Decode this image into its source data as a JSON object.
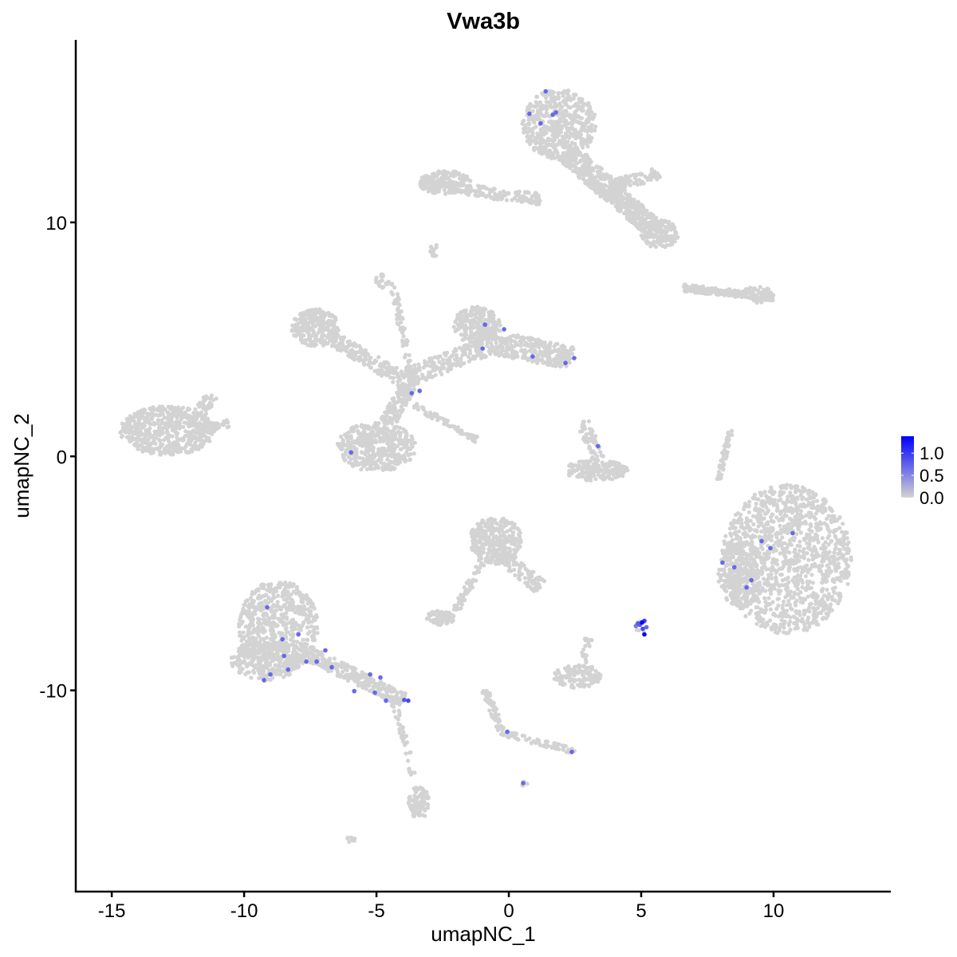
{
  "chart_data": {
    "type": "scatter",
    "title": "Vwa3b",
    "xlabel": "umapNC_1",
    "ylabel": "umapNC_2",
    "xlim": [
      -16.36,
      14.43
    ],
    "ylim": [
      -18.6,
      17.8
    ],
    "x_ticks": [
      -15,
      -10,
      -5,
      0,
      5,
      10
    ],
    "y_ticks": [
      -10,
      0,
      10
    ],
    "grid": false,
    "legend": {
      "position": "right",
      "type": "colorbar",
      "ticks": [
        "0.0",
        "0.5",
        "1.0"
      ],
      "range": [
        0,
        1.38
      ],
      "low_color": "#D3D3D3",
      "high_color": "#0000FF"
    },
    "background_clusters_note_shapes": [
      {
        "shape": "ellipse",
        "c": [
          1.9,
          14.2
        ],
        "r": [
          1.4,
          1.5
        ],
        "n": 520
      },
      {
        "shape": "line",
        "a": [
          2.2,
          13.0
        ],
        "b": [
          3.8,
          11.4
        ],
        "w": 0.9,
        "n": 260
      },
      {
        "shape": "line",
        "a": [
          3.8,
          11.4
        ],
        "b": [
          5.6,
          9.6
        ],
        "w": 0.8,
        "n": 300
      },
      {
        "shape": "ellipse",
        "c": [
          5.7,
          9.5
        ],
        "r": [
          0.7,
          0.6
        ],
        "n": 120
      },
      {
        "shape": "line",
        "a": [
          -3.2,
          11.6
        ],
        "b": [
          1.2,
          11.0
        ],
        "w": 0.5,
        "n": 160
      },
      {
        "shape": "ellipse",
        "c": [
          -2.4,
          11.7
        ],
        "r": [
          1.0,
          0.5
        ],
        "n": 160
      },
      {
        "shape": "line",
        "a": [
          4.0,
          11.6
        ],
        "b": [
          5.7,
          12.1
        ],
        "w": 0.5,
        "n": 80
      },
      {
        "shape": "ellipse",
        "c": [
          -2.8,
          8.8
        ],
        "r": [
          0.2,
          0.25
        ],
        "n": 12
      },
      {
        "shape": "ellipse",
        "c": [
          -7.3,
          5.5
        ],
        "r": [
          0.9,
          0.8
        ],
        "n": 260
      },
      {
        "shape": "line",
        "a": [
          -6.6,
          5.0
        ],
        "b": [
          -3.6,
          3.0
        ],
        "w": 0.6,
        "n": 200
      },
      {
        "shape": "ellipse",
        "c": [
          -1.2,
          5.6
        ],
        "r": [
          0.9,
          0.8
        ],
        "n": 220
      },
      {
        "shape": "line",
        "a": [
          -1.2,
          5.0
        ],
        "b": [
          2.4,
          4.2
        ],
        "w": 1.0,
        "n": 330
      },
      {
        "shape": "line",
        "a": [
          -3.8,
          3.4
        ],
        "b": [
          -1.0,
          4.6
        ],
        "w": 0.8,
        "n": 180
      },
      {
        "shape": "line",
        "a": [
          -4.4,
          7.4
        ],
        "b": [
          -3.6,
          3.0
        ],
        "w": 0.25,
        "n": 80
      },
      {
        "shape": "ellipse",
        "c": [
          -4.8,
          7.5
        ],
        "r": [
          0.3,
          0.3
        ],
        "n": 20
      },
      {
        "shape": "line",
        "a": [
          -3.6,
          2.2
        ],
        "b": [
          -1.2,
          0.7
        ],
        "w": 0.25,
        "n": 70
      },
      {
        "shape": "line",
        "a": [
          -3.8,
          3.0
        ],
        "b": [
          -4.6,
          1.4
        ],
        "w": 0.6,
        "n": 120
      },
      {
        "shape": "ellipse",
        "c": [
          -5.0,
          0.4
        ],
        "r": [
          1.5,
          1.05
        ],
        "n": 430
      },
      {
        "shape": "ellipse",
        "c": [
          -12.9,
          1.1
        ],
        "r": [
          1.8,
          1.05
        ],
        "n": 520
      },
      {
        "shape": "line",
        "a": [
          -12.0,
          1.3
        ],
        "b": [
          -11.2,
          2.6
        ],
        "w": 0.5,
        "n": 60
      },
      {
        "shape": "line",
        "a": [
          -11.5,
          1.2
        ],
        "b": [
          -10.6,
          1.4
        ],
        "w": 0.3,
        "n": 30
      },
      {
        "shape": "ellipse",
        "c": [
          3.3,
          -0.6
        ],
        "r": [
          1.2,
          0.45
        ],
        "n": 180
      },
      {
        "shape": "line",
        "a": [
          2.8,
          1.5
        ],
        "b": [
          3.4,
          -0.2
        ],
        "w": 0.5,
        "n": 60
      },
      {
        "shape": "ellipse",
        "c": [
          10.5,
          -4.4
        ],
        "r": [
          2.45,
          3.2
        ],
        "n": 1300
      },
      {
        "shape": "ellipse",
        "c": [
          8.8,
          -5.0
        ],
        "r": [
          0.9,
          1.5
        ],
        "n": 200
      },
      {
        "shape": "line",
        "a": [
          8.4,
          1.2
        ],
        "b": [
          7.9,
          -1.0
        ],
        "w": 0.2,
        "n": 50
      },
      {
        "shape": "line",
        "a": [
          6.6,
          7.2
        ],
        "b": [
          10.0,
          6.8
        ],
        "w": 0.3,
        "n": 180
      },
      {
        "shape": "ellipse",
        "c": [
          9.4,
          6.9
        ],
        "r": [
          0.6,
          0.35
        ],
        "n": 60
      },
      {
        "shape": "ellipse",
        "c": [
          -0.5,
          -3.6
        ],
        "r": [
          1.0,
          1.0
        ],
        "n": 300
      },
      {
        "shape": "line",
        "a": [
          -0.3,
          -4.2
        ],
        "b": [
          1.2,
          -5.6
        ],
        "w": 0.6,
        "n": 100
      },
      {
        "shape": "line",
        "a": [
          -1.0,
          -4.5
        ],
        "b": [
          -2.0,
          -6.6
        ],
        "w": 0.3,
        "n": 60
      },
      {
        "shape": "ellipse",
        "c": [
          -2.6,
          -6.9
        ],
        "r": [
          0.55,
          0.3
        ],
        "n": 70
      },
      {
        "shape": "ellipse",
        "c": [
          2.6,
          -9.4
        ],
        "r": [
          0.9,
          0.5
        ],
        "n": 130
      },
      {
        "shape": "line",
        "a": [
          3.0,
          -7.8
        ],
        "b": [
          2.8,
          -8.8
        ],
        "w": 0.3,
        "n": 20
      },
      {
        "shape": "ellipse",
        "c": [
          -8.7,
          -7.3
        ],
        "r": [
          1.5,
          2.0
        ],
        "n": 650
      },
      {
        "shape": "ellipse",
        "c": [
          -9.2,
          -8.7
        ],
        "r": [
          1.3,
          0.9
        ],
        "n": 250
      },
      {
        "shape": "line",
        "a": [
          -7.8,
          -8.3
        ],
        "b": [
          -4.0,
          -10.4
        ],
        "w": 0.6,
        "n": 280
      },
      {
        "shape": "line",
        "a": [
          -4.3,
          -10.6
        ],
        "b": [
          -3.6,
          -13.6
        ],
        "w": 0.25,
        "n": 40
      },
      {
        "shape": "ellipse",
        "c": [
          -3.4,
          -14.8
        ],
        "r": [
          0.4,
          0.7
        ],
        "n": 80
      },
      {
        "shape": "line",
        "a": [
          -0.9,
          -10.0
        ],
        "b": [
          -0.3,
          -11.7
        ],
        "w": 0.3,
        "n": 60
      },
      {
        "shape": "line",
        "a": [
          -0.3,
          -11.8
        ],
        "b": [
          2.5,
          -12.6
        ],
        "w": 0.25,
        "n": 70
      },
      {
        "shape": "ellipse",
        "c": [
          0.55,
          -14.0
        ],
        "r": [
          0.15,
          0.12
        ],
        "n": 8
      },
      {
        "shape": "ellipse",
        "c": [
          -6.0,
          -16.4
        ],
        "r": [
          0.25,
          0.12
        ],
        "n": 10
      },
      {
        "shape": "ellipse",
        "c": [
          5.0,
          -7.3
        ],
        "r": [
          0.2,
          0.25
        ],
        "n": 10
      }
    ],
    "expressing_cells": [
      {
        "x": 0.78,
        "y": 14.64,
        "v": 0.7
      },
      {
        "x": 1.2,
        "y": 14.23,
        "v": 0.7
      },
      {
        "x": 1.39,
        "y": 15.6,
        "v": 0.7
      },
      {
        "x": 1.66,
        "y": 14.6,
        "v": 0.7
      },
      {
        "x": 1.78,
        "y": 14.7,
        "v": 0.7
      },
      {
        "x": -0.9,
        "y": 5.63,
        "v": 0.7
      },
      {
        "x": -0.18,
        "y": 5.43,
        "v": 0.7
      },
      {
        "x": -0.99,
        "y": 4.61,
        "v": 0.7
      },
      {
        "x": 0.9,
        "y": 4.27,
        "v": 0.7
      },
      {
        "x": 2.14,
        "y": 3.99,
        "v": 0.7
      },
      {
        "x": 2.47,
        "y": 4.2,
        "v": 0.7
      },
      {
        "x": -3.67,
        "y": 2.7,
        "v": 0.7
      },
      {
        "x": -3.37,
        "y": 2.8,
        "v": 0.7
      },
      {
        "x": -5.96,
        "y": 0.17,
        "v": 0.7
      },
      {
        "x": 3.37,
        "y": 0.44,
        "v": 0.7
      },
      {
        "x": 10.72,
        "y": -3.28,
        "v": 0.7
      },
      {
        "x": 9.55,
        "y": -3.62,
        "v": 0.7
      },
      {
        "x": 9.88,
        "y": -3.92,
        "v": 0.7
      },
      {
        "x": 8.07,
        "y": -4.54,
        "v": 0.7
      },
      {
        "x": 8.52,
        "y": -4.74,
        "v": 0.7
      },
      {
        "x": 9.16,
        "y": -5.29,
        "v": 0.7
      },
      {
        "x": 8.98,
        "y": -5.6,
        "v": 0.7
      },
      {
        "x": -9.13,
        "y": -6.45,
        "v": 0.7
      },
      {
        "x": -8.55,
        "y": -7.82,
        "v": 0.7
      },
      {
        "x": -7.95,
        "y": -7.61,
        "v": 0.7
      },
      {
        "x": -8.49,
        "y": -8.53,
        "v": 0.7
      },
      {
        "x": -7.65,
        "y": -8.77,
        "v": 0.7
      },
      {
        "x": -7.26,
        "y": -8.77,
        "v": 0.7
      },
      {
        "x": -6.93,
        "y": -8.29,
        "v": 0.7
      },
      {
        "x": -6.69,
        "y": -9.01,
        "v": 0.7
      },
      {
        "x": -8.34,
        "y": -9.11,
        "v": 0.7
      },
      {
        "x": -9.01,
        "y": -9.32,
        "v": 0.7
      },
      {
        "x": -9.25,
        "y": -9.56,
        "v": 0.7
      },
      {
        "x": -5.84,
        "y": -10.03,
        "v": 0.7
      },
      {
        "x": -5.24,
        "y": -9.32,
        "v": 0.7
      },
      {
        "x": -4.85,
        "y": -9.45,
        "v": 0.7
      },
      {
        "x": -5.06,
        "y": -10.1,
        "v": 0.7
      },
      {
        "x": -4.64,
        "y": -10.44,
        "v": 0.7
      },
      {
        "x": -3.95,
        "y": -10.41,
        "v": 0.8
      },
      {
        "x": -3.8,
        "y": -10.44,
        "v": 0.9
      },
      {
        "x": -0.06,
        "y": -11.77,
        "v": 0.7
      },
      {
        "x": 2.38,
        "y": -12.63,
        "v": 0.7
      },
      {
        "x": 0.54,
        "y": -13.96,
        "v": 0.7
      },
      {
        "x": 4.8,
        "y": -7.25,
        "v": 0.6
      },
      {
        "x": 4.88,
        "y": -7.13,
        "v": 0.8
      },
      {
        "x": 5.12,
        "y": -7.03,
        "v": 1.0
      },
      {
        "x": 5.2,
        "y": -7.3,
        "v": 0.7
      },
      {
        "x": 5.06,
        "y": -7.37,
        "v": 0.9
      },
      {
        "x": 4.95,
        "y": -7.2,
        "v": 0.8
      },
      {
        "x": 5.03,
        "y": -7.1,
        "v": 1.35
      },
      {
        "x": 5.12,
        "y": -7.61,
        "v": 1.35
      }
    ]
  }
}
